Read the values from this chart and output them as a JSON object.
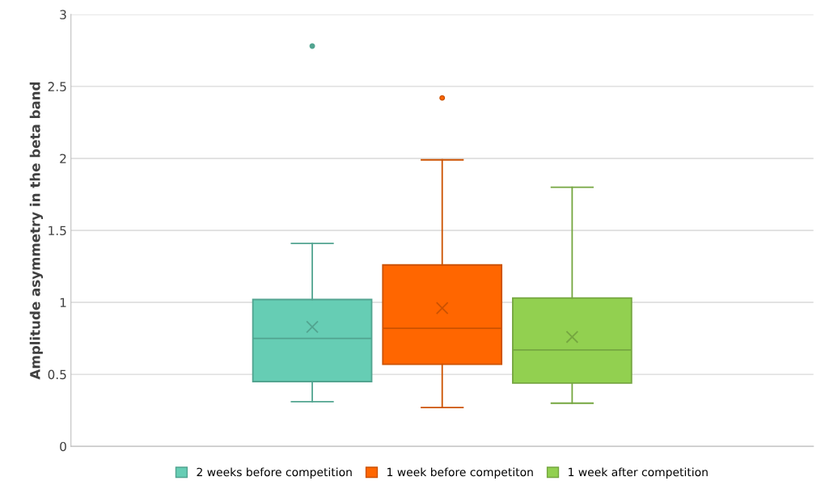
{
  "chart_data": {
    "type": "box",
    "ylabel": "Amplitude asymmetry in the beta band",
    "categories": [
      null
    ],
    "series": [
      {
        "name": "2 weeks before competition",
        "color": "#66cdb4",
        "boxes": [
          {
            "low": 0.31,
            "q1": 0.45,
            "median": 0.75,
            "q3": 1.02,
            "high": 1.41,
            "mean": 0.83,
            "outliers": [
              2.78
            ]
          }
        ]
      },
      {
        "name": "1 week before competiton",
        "color": "#ff6600",
        "boxes": [
          {
            "low": 0.27,
            "q1": 0.57,
            "median": 0.82,
            "q3": 1.26,
            "high": 1.99,
            "mean": 0.96,
            "outliers": [
              2.42
            ]
          }
        ]
      },
      {
        "name": "1 week after competition",
        "color": "#92d050",
        "boxes": [
          {
            "low": 0.3,
            "q1": 0.44,
            "median": 0.67,
            "q3": 1.03,
            "high": 1.8,
            "mean": 0.76
          }
        ]
      }
    ],
    "ylim": [
      0,
      3
    ],
    "yticks": [
      0,
      0.5,
      1,
      1.5,
      2,
      2.5,
      3
    ],
    "grid": "y",
    "legend": "bottom",
    "marker": "cross"
  }
}
